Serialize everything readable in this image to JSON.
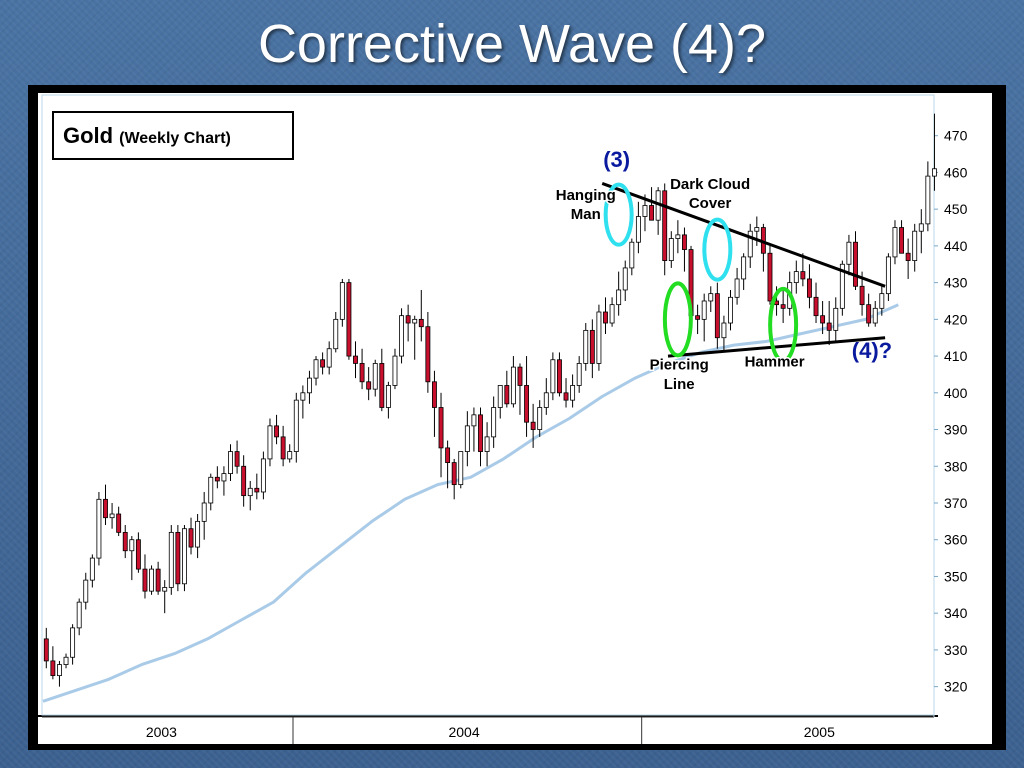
{
  "slide": {
    "title": "Corrective Wave (4)?"
  },
  "colors": {
    "up_body": "#ffffff",
    "down_body": "#c8102e",
    "wick": "#000000",
    "moving_average": "#a9cbe8",
    "cyan_marker": "#2fe0ee",
    "green_marker": "#22dd22",
    "wave_label": "#0a1a9e"
  },
  "chart_data": {
    "type": "candlestick",
    "title": "Gold",
    "subtitle": "(Weekly Chart)",
    "ylim": [
      315,
      477
    ],
    "yticks": [
      320,
      330,
      340,
      350,
      360,
      370,
      380,
      390,
      400,
      410,
      420,
      430,
      440,
      450,
      460,
      470
    ],
    "year_labels": [
      {
        "label": "2003",
        "week": 18
      },
      {
        "label": "2004",
        "week": 64
      },
      {
        "label": "2005",
        "week": 118
      }
    ],
    "year_dividers": [
      38,
      91
    ],
    "week_count": 133,
    "candles": [
      [
        333,
        336,
        325,
        327
      ],
      [
        327,
        331,
        322,
        323
      ],
      [
        323,
        327,
        320,
        326
      ],
      [
        326,
        329,
        325,
        328
      ],
      [
        328,
        337,
        326,
        336
      ],
      [
        336,
        344,
        334,
        343
      ],
      [
        343,
        351,
        341,
        349
      ],
      [
        349,
        356,
        347,
        355
      ],
      [
        355,
        373,
        353,
        371
      ],
      [
        371,
        375,
        364,
        366
      ],
      [
        366,
        370,
        363,
        367
      ],
      [
        367,
        369,
        361,
        362
      ],
      [
        362,
        364,
        355,
        357
      ],
      [
        357,
        361,
        349,
        360
      ],
      [
        360,
        362,
        351,
        352
      ],
      [
        352,
        356,
        344,
        346
      ],
      [
        346,
        353,
        345,
        352
      ],
      [
        352,
        354,
        345,
        346
      ],
      [
        346,
        349,
        340,
        347
      ],
      [
        347,
        364,
        345,
        362
      ],
      [
        362,
        364,
        346,
        348
      ],
      [
        348,
        364,
        346,
        363
      ],
      [
        363,
        366,
        356,
        358
      ],
      [
        358,
        367,
        355,
        365
      ],
      [
        365,
        373,
        360,
        370
      ],
      [
        370,
        378,
        368,
        377
      ],
      [
        377,
        380,
        374,
        376
      ],
      [
        376,
        380,
        372,
        378
      ],
      [
        378,
        386,
        376,
        384
      ],
      [
        384,
        387,
        378,
        380
      ],
      [
        380,
        383,
        369,
        372
      ],
      [
        372,
        376,
        368,
        374
      ],
      [
        374,
        378,
        371,
        373
      ],
      [
        373,
        384,
        371,
        382
      ],
      [
        382,
        393,
        380,
        391
      ],
      [
        391,
        394,
        386,
        388
      ],
      [
        388,
        391,
        380,
        382
      ],
      [
        382,
        386,
        381,
        384
      ],
      [
        384,
        400,
        381,
        398
      ],
      [
        398,
        402,
        393,
        400
      ],
      [
        400,
        406,
        397,
        404
      ],
      [
        404,
        410,
        402,
        409
      ],
      [
        409,
        411,
        405,
        407
      ],
      [
        407,
        414,
        405,
        412
      ],
      [
        412,
        422,
        411,
        420
      ],
      [
        420,
        431,
        418,
        430
      ],
      [
        430,
        431,
        409,
        410
      ],
      [
        410,
        414,
        404,
        408
      ],
      [
        408,
        412,
        401,
        403
      ],
      [
        403,
        407,
        398,
        401
      ],
      [
        401,
        409,
        399,
        408
      ],
      [
        408,
        412,
        395,
        396
      ],
      [
        396,
        403,
        393,
        402
      ],
      [
        402,
        412,
        401,
        410
      ],
      [
        410,
        423,
        408,
        421
      ],
      [
        421,
        424,
        414,
        419
      ],
      [
        419,
        421,
        409,
        420
      ],
      [
        420,
        428,
        414,
        418
      ],
      [
        418,
        422,
        400,
        403
      ],
      [
        403,
        406,
        388,
        396
      ],
      [
        396,
        400,
        377,
        385
      ],
      [
        385,
        387,
        374,
        381
      ],
      [
        381,
        382,
        371,
        375
      ],
      [
        375,
        384,
        374,
        384
      ],
      [
        384,
        395,
        380,
        391
      ],
      [
        391,
        396,
        384,
        394
      ],
      [
        394,
        396,
        380,
        384
      ],
      [
        384,
        392,
        380,
        388
      ],
      [
        388,
        399,
        385,
        396
      ],
      [
        396,
        402,
        393,
        402
      ],
      [
        402,
        406,
        396,
        397
      ],
      [
        397,
        410,
        396,
        407
      ],
      [
        407,
        408,
        394,
        402
      ],
      [
        402,
        410,
        388,
        392
      ],
      [
        392,
        397,
        385,
        390
      ],
      [
        390,
        398,
        388,
        396
      ],
      [
        396,
        404,
        394,
        400
      ],
      [
        400,
        411,
        398,
        409
      ],
      [
        409,
        411,
        399,
        400
      ],
      [
        400,
        404,
        396,
        398
      ],
      [
        398,
        405,
        396,
        402
      ],
      [
        402,
        410,
        400,
        408
      ],
      [
        408,
        419,
        406,
        417
      ],
      [
        417,
        420,
        404,
        408
      ],
      [
        408,
        424,
        406,
        422
      ],
      [
        422,
        426,
        416,
        419
      ],
      [
        419,
        426,
        418,
        424
      ],
      [
        424,
        433,
        421,
        428
      ],
      [
        428,
        436,
        425,
        434
      ],
      [
        434,
        442,
        432,
        441
      ],
      [
        441,
        452,
        438,
        448
      ],
      [
        448,
        454,
        444,
        451
      ],
      [
        451,
        456,
        448,
        447
      ],
      [
        447,
        456,
        443,
        455
      ],
      [
        455,
        457,
        432,
        436
      ],
      [
        436,
        444,
        434,
        442
      ],
      [
        442,
        447,
        438,
        443
      ],
      [
        443,
        445,
        433,
        439
      ],
      [
        439,
        440,
        418,
        421
      ],
      [
        421,
        424,
        416,
        420
      ],
      [
        420,
        427,
        414,
        425
      ],
      [
        425,
        429,
        422,
        427
      ],
      [
        427,
        430,
        412,
        415
      ],
      [
        415,
        421,
        411,
        419
      ],
      [
        419,
        428,
        417,
        426
      ],
      [
        426,
        434,
        424,
        431
      ],
      [
        431,
        438,
        428,
        437
      ],
      [
        437,
        446,
        434,
        444
      ],
      [
        444,
        448,
        440,
        445
      ],
      [
        445,
        446,
        433,
        438
      ],
      [
        438,
        440,
        424,
        425
      ],
      [
        425,
        429,
        421,
        424
      ],
      [
        424,
        428,
        419,
        423
      ],
      [
        423,
        433,
        421,
        430
      ],
      [
        430,
        436,
        427,
        433
      ],
      [
        433,
        438,
        429,
        431
      ],
      [
        431,
        435,
        423,
        426
      ],
      [
        426,
        430,
        419,
        421
      ],
      [
        421,
        425,
        416,
        419
      ],
      [
        419,
        425,
        413,
        417
      ],
      [
        417,
        426,
        414,
        423
      ],
      [
        423,
        436,
        421,
        435
      ],
      [
        435,
        443,
        432,
        441
      ],
      [
        441,
        444,
        428,
        429
      ],
      [
        429,
        433,
        421,
        424
      ],
      [
        424,
        427,
        418,
        419
      ],
      [
        419,
        425,
        418,
        423
      ],
      [
        423,
        429,
        421,
        427
      ],
      [
        427,
        438,
        425,
        437
      ],
      [
        437,
        447,
        435,
        445
      ],
      [
        445,
        447,
        438,
        438
      ],
      [
        438,
        442,
        431,
        436
      ],
      [
        436,
        446,
        433,
        444
      ],
      [
        444,
        450,
        438,
        446
      ],
      [
        446,
        463,
        444,
        459
      ],
      [
        459,
        476,
        455,
        461
      ]
    ],
    "moving_average": [
      [
        0,
        316
      ],
      [
        5,
        319
      ],
      [
        10,
        322
      ],
      [
        15,
        326
      ],
      [
        20,
        329
      ],
      [
        25,
        333
      ],
      [
        30,
        338
      ],
      [
        35,
        343
      ],
      [
        40,
        351
      ],
      [
        45,
        358
      ],
      [
        50,
        365
      ],
      [
        55,
        371
      ],
      [
        60,
        375
      ],
      [
        65,
        377
      ],
      [
        70,
        382
      ],
      [
        75,
        388
      ],
      [
        80,
        393
      ],
      [
        85,
        399
      ],
      [
        90,
        404
      ],
      [
        95,
        408
      ],
      [
        100,
        411
      ],
      [
        105,
        413
      ],
      [
        110,
        414
      ],
      [
        115,
        416
      ],
      [
        120,
        418
      ],
      [
        125,
        420
      ],
      [
        130,
        424
      ]
    ],
    "trendlines": [
      {
        "name": "upper",
        "from": [
          85,
          457
        ],
        "to": [
          128,
          429
        ]
      },
      {
        "name": "lower",
        "from": [
          95,
          410
        ],
        "to": [
          128,
          415
        ]
      }
    ],
    "annotations": [
      {
        "text": "(3)",
        "week": 87.2,
        "price": 461.5,
        "style": "wave"
      },
      {
        "text": "(4)?",
        "week": 126,
        "price": 409.5,
        "style": "wave"
      },
      {
        "text": "Hanging",
        "week": 82.5,
        "price": 452.5,
        "style": "note"
      },
      {
        "text": "Man",
        "week": 82.5,
        "price": 447.3,
        "style": "note"
      },
      {
        "text": "Dark Cloud",
        "week": 101.4,
        "price": 455.5,
        "style": "note"
      },
      {
        "text": "Cover",
        "week": 101.4,
        "price": 450.3,
        "style": "note"
      },
      {
        "text": "Piercing",
        "week": 96.7,
        "price": 406.3,
        "style": "note"
      },
      {
        "text": "Line",
        "week": 96.7,
        "price": 401.1,
        "style": "note"
      },
      {
        "text": "Hammer",
        "week": 111.2,
        "price": 407.2,
        "style": "note"
      }
    ],
    "markers": [
      {
        "name": "hanging-man-marker",
        "week": 87,
        "price": 448.5,
        "color": "cyan"
      },
      {
        "name": "dark-cloud-cover-marker",
        "week": 102,
        "price": 439,
        "color": "cyan"
      },
      {
        "name": "piercing-line-marker",
        "week": 96,
        "price": 420,
        "color": "green"
      },
      {
        "name": "hammer-marker",
        "week": 112,
        "price": 418.5,
        "color": "green"
      }
    ]
  }
}
